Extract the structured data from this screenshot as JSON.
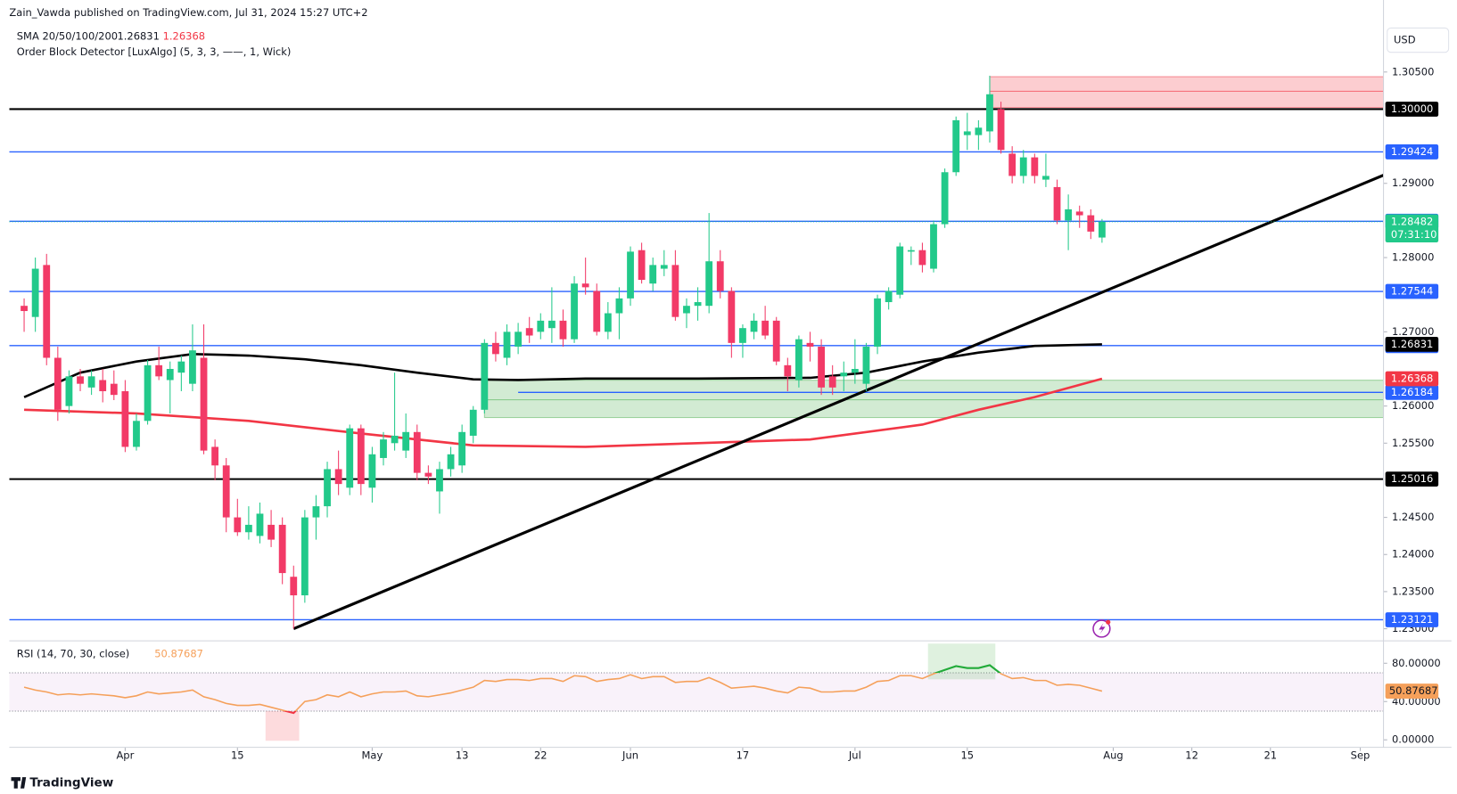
{
  "chart_data": {
    "type": "candlestick",
    "publisher": "Zain_Vawda published on TradingView.com, Jul 31, 2024 15:27 UTC+2",
    "currency": "USD",
    "sma_label": "SMA 20/50/100/200",
    "obd_label": "Order Block Detector [LuxAlgo] (5, 3, 3, ——, 1, Wick)",
    "countdown": "07:31:10",
    "brand": "TradingView",
    "up_color": "#22c98a",
    "down_color": "#f23a67",
    "candles": [
      [
        1.2735,
        1.2745,
        1.27,
        1.2728
      ],
      [
        1.272,
        1.28,
        1.27,
        1.2785
      ],
      [
        1.279,
        1.2805,
        1.2655,
        1.2665
      ],
      [
        1.2665,
        1.268,
        1.258,
        1.2595
      ],
      [
        1.26,
        1.2648,
        1.259,
        1.264
      ],
      [
        1.264,
        1.265,
        1.262,
        1.263
      ],
      [
        1.2625,
        1.2648,
        1.2615,
        1.264
      ],
      [
        1.2635,
        1.265,
        1.2605,
        1.262
      ],
      [
        1.263,
        1.2648,
        1.2608,
        1.2615
      ],
      [
        1.262,
        1.2635,
        1.2538,
        1.2545
      ],
      [
        1.2545,
        1.259,
        1.254,
        1.258
      ],
      [
        1.258,
        1.2662,
        1.2575,
        1.2655
      ],
      [
        1.2655,
        1.268,
        1.2635,
        1.264
      ],
      [
        1.2635,
        1.266,
        1.259,
        1.265
      ],
      [
        1.2645,
        1.2668,
        1.262,
        1.266
      ],
      [
        1.263,
        1.271,
        1.262,
        1.2675
      ],
      [
        1.2665,
        1.271,
        1.2535,
        1.254
      ],
      [
        1.2545,
        1.2555,
        1.25,
        1.252
      ],
      [
        1.252,
        1.253,
        1.243,
        1.245
      ],
      [
        1.245,
        1.2475,
        1.2425,
        1.243
      ],
      [
        1.243,
        1.2465,
        1.242,
        1.244
      ],
      [
        1.2425,
        1.247,
        1.2415,
        1.2455
      ],
      [
        1.244,
        1.246,
        1.241,
        1.242
      ],
      [
        1.244,
        1.245,
        1.236,
        1.2375
      ],
      [
        1.237,
        1.2385,
        1.23,
        1.2345
      ],
      [
        1.2345,
        1.246,
        1.2335,
        1.245
      ],
      [
        1.245,
        1.248,
        1.242,
        1.2465
      ],
      [
        1.2465,
        1.2525,
        1.245,
        1.2515
      ],
      [
        1.2515,
        1.254,
        1.248,
        1.2495
      ],
      [
        1.249,
        1.2575,
        1.248,
        1.257
      ],
      [
        1.257,
        1.2575,
        1.248,
        1.2495
      ],
      [
        1.249,
        1.2545,
        1.247,
        1.2535
      ],
      [
        1.253,
        1.2565,
        1.252,
        1.2555
      ],
      [
        1.255,
        1.2645,
        1.254,
        1.256
      ],
      [
        1.254,
        1.259,
        1.253,
        1.2565
      ],
      [
        1.2565,
        1.2575,
        1.25,
        1.251
      ],
      [
        1.251,
        1.252,
        1.2495,
        1.2505
      ],
      [
        1.2485,
        1.2525,
        1.2455,
        1.2515
      ],
      [
        1.2515,
        1.2545,
        1.2505,
        1.2535
      ],
      [
        1.252,
        1.2575,
        1.251,
        1.2565
      ],
      [
        1.256,
        1.26,
        1.255,
        1.2595
      ],
      [
        1.2595,
        1.269,
        1.259,
        1.2685
      ],
      [
        1.2685,
        1.27,
        1.266,
        1.267
      ],
      [
        1.2665,
        1.271,
        1.2655,
        1.27
      ],
      [
        1.268,
        1.2712,
        1.267,
        1.27
      ],
      [
        1.2705,
        1.272,
        1.2685,
        1.2695
      ],
      [
        1.27,
        1.2725,
        1.269,
        1.2715
      ],
      [
        1.2705,
        1.276,
        1.2685,
        1.2715
      ],
      [
        1.2715,
        1.273,
        1.268,
        1.269
      ],
      [
        1.269,
        1.2775,
        1.2685,
        1.2765
      ],
      [
        1.2765,
        1.28,
        1.275,
        1.276
      ],
      [
        1.2755,
        1.2765,
        1.2695,
        1.27
      ],
      [
        1.27,
        1.274,
        1.269,
        1.2725
      ],
      [
        1.2725,
        1.276,
        1.269,
        1.2745
      ],
      [
        1.2745,
        1.2815,
        1.2735,
        1.2808
      ],
      [
        1.281,
        1.282,
        1.2765,
        1.277
      ],
      [
        1.2765,
        1.28,
        1.2755,
        1.279
      ],
      [
        1.2785,
        1.281,
        1.2775,
        1.279
      ],
      [
        1.279,
        1.281,
        1.2715,
        1.272
      ],
      [
        1.2725,
        1.2745,
        1.2705,
        1.2735
      ],
      [
        1.2735,
        1.276,
        1.2715,
        1.274
      ],
      [
        1.2735,
        1.286,
        1.2725,
        1.2795
      ],
      [
        1.2795,
        1.281,
        1.2745,
        1.2755
      ],
      [
        1.2755,
        1.276,
        1.2665,
        1.2685
      ],
      [
        1.2685,
        1.271,
        1.2665,
        1.2705
      ],
      [
        1.27,
        1.2725,
        1.269,
        1.2715
      ],
      [
        1.2715,
        1.2735,
        1.269,
        1.2695
      ],
      [
        1.2715,
        1.272,
        1.2655,
        1.266
      ],
      [
        1.2655,
        1.2665,
        1.262,
        1.264
      ],
      [
        1.2635,
        1.2695,
        1.2625,
        1.269
      ],
      [
        1.2685,
        1.27,
        1.266,
        1.268
      ],
      [
        1.268,
        1.269,
        1.2615,
        1.2625
      ],
      [
        1.264,
        1.2655,
        1.2615,
        1.2625
      ],
      [
        1.264,
        1.266,
        1.262,
        1.2645
      ],
      [
        1.2645,
        1.269,
        1.263,
        1.265
      ],
      [
        1.263,
        1.2685,
        1.262,
        1.268
      ],
      [
        1.268,
        1.275,
        1.267,
        1.2745
      ],
      [
        1.274,
        1.276,
        1.273,
        1.2755
      ],
      [
        1.275,
        1.282,
        1.2745,
        1.2815
      ],
      [
        1.2808,
        1.2815,
        1.279,
        1.281
      ],
      [
        1.281,
        1.282,
        1.278,
        1.279
      ],
      [
        1.2785,
        1.285,
        1.278,
        1.2845
      ],
      [
        1.2845,
        1.292,
        1.284,
        1.2915
      ],
      [
        1.2915,
        1.299,
        1.291,
        1.2985
      ],
      [
        1.2965,
        1.2995,
        1.2945,
        1.297
      ],
      [
        1.2965,
        1.2985,
        1.2945,
        1.2975
      ],
      [
        1.297,
        1.3045,
        1.2955,
        1.302
      ],
      [
        1.3,
        1.301,
        1.294,
        1.2945
      ],
      [
        1.294,
        1.295,
        1.29,
        1.291
      ],
      [
        1.291,
        1.2945,
        1.29,
        1.2935
      ],
      [
        1.2935,
        1.294,
        1.29,
        1.291
      ],
      [
        1.2905,
        1.294,
        1.2895,
        1.291
      ],
      [
        1.2895,
        1.2905,
        1.2845,
        1.285
      ],
      [
        1.285,
        1.2885,
        1.281,
        1.2865
      ],
      [
        1.2862,
        1.287,
        1.284,
        1.2857
      ],
      [
        1.2857,
        1.2865,
        1.2825,
        1.2835
      ],
      [
        1.2827,
        1.2852,
        1.282,
        1.28482
      ]
    ],
    "xlim": [
      -1.32,
      121.07
    ],
    "xticks": [
      {
        "value": 9,
        "label": "Apr"
      },
      {
        "value": 19,
        "label": "15"
      },
      {
        "value": 31,
        "label": "May"
      },
      {
        "value": 39,
        "label": "13"
      },
      {
        "value": 46,
        "label": "22"
      },
      {
        "value": 54,
        "label": "Jun"
      },
      {
        "value": 64,
        "label": "17"
      },
      {
        "value": 74,
        "label": "Jul"
      },
      {
        "value": 84,
        "label": "15"
      },
      {
        "value": 97,
        "label": "Aug"
      },
      {
        "value": 104,
        "label": "12"
      },
      {
        "value": 111,
        "label": "21"
      },
      {
        "value": 119,
        "label": "Sep"
      }
    ],
    "ylim": [
      1.2285,
      1.3147
    ],
    "yticks": [
      {
        "value": 1.305,
        "label": "1.30500"
      },
      {
        "value": 1.29,
        "label": "1.29000"
      },
      {
        "value": 1.28,
        "label": "1.28000"
      },
      {
        "value": 1.27,
        "label": "1.27000"
      },
      {
        "value": 1.26,
        "label": "1.26000"
      },
      {
        "value": 1.255,
        "label": "1.25500"
      },
      {
        "value": 1.245,
        "label": "1.24500"
      },
      {
        "value": 1.24,
        "label": "1.24000"
      },
      {
        "value": 1.235,
        "label": "1.23500"
      },
      {
        "value": 1.23,
        "label": "1.23000"
      }
    ],
    "levels": [
      {
        "value": {
          "value": 1.3,
          "label": "1.30000"
        },
        "color": "#000000",
        "from": -1.32
      },
      {
        "value": 1.29424,
        "color": "#2962ff",
        "from": -1.32
      },
      {
        "value": 1.28489,
        "color": "#2962ff",
        "from": -1.32
      },
      {
        "value": 1.27544,
        "color": "#2962ff",
        "from": -1.32
      },
      {
        "value": 1.26814,
        "color": "#2962ff",
        "from": -1.32
      },
      {
        "value": 1.26184,
        "color": "#2962ff",
        "from": 44
      },
      {
        "value": 1.25016,
        "color": "#000000",
        "from": -1.32
      },
      {
        "value": 1.23121,
        "color": "#2962ff",
        "from": -1.32
      }
    ],
    "sma": [
      {
        "color": "#000000",
        "x": [
          0,
          5,
          10,
          15,
          20,
          25,
          30,
          35,
          40,
          44,
          50,
          60,
          70,
          75,
          80,
          85,
          90,
          96
        ],
        "values": [
          1.2612,
          1.2645,
          1.266,
          1.267,
          1.2668,
          1.2663,
          1.2655,
          1.2645,
          1.2636,
          1.2635,
          1.2637,
          1.2637,
          1.2638,
          1.2645,
          1.266,
          1.2672,
          1.2681,
          1.26831
        ]
      },
      {
        "color": "#f23645",
        "x": [
          0,
          10,
          20,
          30,
          40,
          50,
          60,
          70,
          80,
          85,
          90,
          96
        ],
        "values": [
          1.2595,
          1.259,
          1.258,
          1.2563,
          1.2547,
          1.2545,
          1.255,
          1.2555,
          1.2575,
          1.2595,
          1.2612,
          1.26368
        ]
      }
    ],
    "trendline": {
      "color": "#000000",
      "x": [
        24,
        121.07
      ],
      "values": [
        1.23,
        1.2911
      ]
    },
    "order_blocks": [
      {
        "x": [
          86,
          121.07
        ],
        "top": 1.30437,
        "bottom": 1.30022,
        "mid": 1.3024,
        "color": "#f23645"
      },
      {
        "x": [
          41,
          121.07
        ],
        "top": 1.26348,
        "bottom": 1.25845,
        "mid": 1.26084,
        "color": "#4caf50"
      }
    ],
    "rsi": {
      "label": "RSI (14, 70, 30, close)",
      "color": "#f5a05a",
      "over_color": "#22ab3a",
      "under_color": "#f23645",
      "ylim": [
        -7.8,
        101.5
      ],
      "yticks": [
        {
          "value": 80,
          "label": "80.00000"
        },
        {
          "value": 40,
          "label": "40.00000"
        },
        {
          "value": 0,
          "label": "0.00000"
        }
      ],
      "bands": [
        30,
        70
      ],
      "highlights": [
        {
          "x": [
            80.5,
            86.5
          ],
          "color": "#4caf50"
        },
        {
          "x": [
            21.5,
            24.5
          ],
          "color": "#f23645"
        }
      ],
      "values": [
        55,
        52,
        50,
        47,
        48,
        47,
        48,
        47,
        46,
        44,
        46,
        50,
        48,
        49,
        50,
        52,
        45,
        42,
        38,
        36,
        36,
        37,
        34,
        31,
        28,
        40,
        42,
        47,
        45,
        50,
        45,
        48,
        50,
        50,
        51,
        46,
        45,
        47,
        49,
        52,
        55,
        62,
        61,
        63,
        63,
        62,
        64,
        64,
        61,
        67,
        66,
        61,
        63,
        64,
        68,
        64,
        66,
        66,
        60,
        61,
        61,
        65,
        60,
        54,
        55,
        56,
        54,
        51,
        49,
        55,
        54,
        50,
        50,
        51,
        51,
        55,
        61,
        62,
        67,
        67,
        64,
        69,
        73,
        77,
        75,
        75,
        78,
        69,
        64,
        65,
        62,
        62,
        57,
        58,
        57,
        54,
        50.87687
      ]
    }
  }
}
